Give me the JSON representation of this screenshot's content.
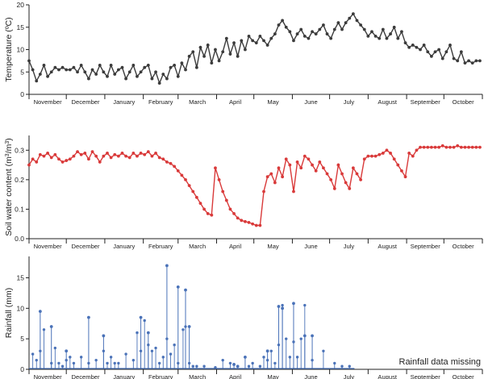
{
  "chart_data": [
    {
      "type": "line",
      "ylabel": "Temperature (",
      "ylabel_unit": "ºC)",
      "ylim": [
        0,
        20
      ],
      "yticks": [
        0,
        5,
        10,
        15,
        20
      ],
      "month_labels": [
        "November",
        "December",
        "January",
        "February",
        "March",
        "April",
        "May",
        "June",
        "July",
        "August",
        "September",
        "October"
      ],
      "color": "#3b3b3b",
      "x_day": [
        0,
        3,
        6,
        9,
        12,
        15,
        18,
        21,
        24,
        27,
        30,
        33,
        36,
        39,
        42,
        45,
        48,
        51,
        54,
        57,
        60,
        63,
        66,
        69,
        72,
        75,
        78,
        81,
        84,
        87,
        90,
        93,
        96,
        99,
        102,
        105,
        108,
        111,
        114,
        117,
        120,
        123,
        126,
        129,
        132,
        135,
        138,
        141,
        144,
        147,
        150,
        153,
        156,
        159,
        162,
        165,
        168,
        171,
        174,
        177,
        180,
        183,
        186,
        189,
        192,
        195,
        198,
        201,
        204,
        207,
        210,
        213,
        216,
        219,
        222,
        225,
        228,
        231,
        234,
        237,
        240,
        243,
        246,
        249,
        252,
        255,
        258,
        261,
        264,
        267,
        270,
        273,
        276,
        279,
        282,
        285,
        288,
        291,
        294,
        297,
        300,
        303,
        306,
        309,
        312,
        315,
        318,
        321,
        324,
        327,
        330,
        333,
        336,
        339,
        342,
        345,
        348,
        351,
        354,
        357,
        360,
        363
      ],
      "values": [
        7.5,
        5.5,
        3.0,
        4.5,
        6.5,
        4.0,
        5.0,
        6.0,
        5.5,
        6.0,
        5.5,
        5.5,
        6.0,
        5.0,
        6.5,
        5.0,
        3.5,
        5.5,
        4.5,
        6.5,
        5.0,
        4.0,
        6.5,
        4.5,
        5.5,
        6.0,
        3.5,
        5.0,
        6.5,
        4.0,
        5.0,
        6.0,
        6.5,
        3.5,
        5.0,
        2.5,
        4.5,
        3.5,
        6.0,
        6.5,
        4.0,
        7.0,
        5.5,
        8.5,
        9.5,
        6.0,
        10.5,
        8.5,
        11.0,
        7.0,
        10.0,
        7.5,
        9.5,
        12.5,
        9.0,
        11.5,
        8.5,
        12.0,
        10.0,
        13.0,
        12.0,
        11.5,
        13.0,
        12.0,
        11.0,
        12.5,
        13.5,
        15.5,
        16.5,
        15.0,
        14.0,
        12.0,
        13.5,
        14.5,
        13.0,
        12.5,
        14.0,
        13.5,
        14.5,
        15.5,
        13.5,
        12.5,
        14.5,
        16.0,
        14.5,
        16.0,
        17.0,
        18.0,
        16.5,
        15.5,
        14.5,
        13.0,
        14.0,
        13.0,
        12.5,
        14.5,
        12.5,
        13.5,
        15.0,
        12.5,
        14.0,
        11.5,
        10.5,
        11.0,
        10.5,
        10.0,
        11.0,
        9.5,
        8.5,
        9.5,
        10.0,
        8.0,
        9.5,
        11.0,
        8.0,
        7.5,
        9.5,
        7.0,
        7.5,
        7.0,
        7.5,
        7.5
      ]
    },
    {
      "type": "line",
      "ylabel": "Soil water content (m",
      "ylabel_mid": "/m",
      "ylabel_end": ")",
      "ylabel_sup": "3",
      "ylim": [
        0,
        0.35
      ],
      "yticks": [
        0.0,
        0.1,
        0.2,
        0.3
      ],
      "ytick_labels": [
        "0.0",
        "0.1",
        "0.2",
        "0.3"
      ],
      "month_labels": [
        "November",
        "December",
        "January",
        "February",
        "March",
        "April",
        "May",
        "June",
        "July",
        "August",
        "September",
        "October"
      ],
      "color": "#d93a3a",
      "x_day": [
        0,
        3,
        6,
        9,
        12,
        15,
        18,
        21,
        24,
        27,
        30,
        33,
        36,
        39,
        42,
        45,
        48,
        51,
        54,
        57,
        60,
        63,
        66,
        69,
        72,
        75,
        78,
        81,
        84,
        87,
        90,
        93,
        96,
        99,
        102,
        105,
        108,
        111,
        114,
        117,
        120,
        123,
        126,
        129,
        132,
        135,
        138,
        141,
        144,
        147,
        150,
        153,
        156,
        159,
        162,
        165,
        168,
        171,
        174,
        177,
        180,
        183,
        186,
        189,
        192,
        195,
        198,
        201,
        204,
        207,
        210,
        213,
        216,
        219,
        222,
        225,
        228,
        231,
        234,
        237,
        240,
        243,
        246,
        249,
        252,
        255,
        258,
        261,
        264,
        267,
        270,
        273,
        276,
        279,
        282,
        285,
        288,
        291,
        294,
        297,
        300,
        303,
        306,
        309,
        312,
        315,
        318,
        321,
        324,
        327,
        330,
        333,
        336,
        339,
        342,
        345,
        348,
        351,
        354,
        357,
        360,
        363
      ],
      "values": [
        0.25,
        0.27,
        0.26,
        0.285,
        0.28,
        0.29,
        0.275,
        0.285,
        0.27,
        0.26,
        0.265,
        0.27,
        0.28,
        0.295,
        0.285,
        0.29,
        0.27,
        0.295,
        0.28,
        0.26,
        0.28,
        0.29,
        0.275,
        0.285,
        0.28,
        0.29,
        0.28,
        0.275,
        0.29,
        0.28,
        0.29,
        0.285,
        0.295,
        0.28,
        0.29,
        0.275,
        0.27,
        0.26,
        0.255,
        0.245,
        0.23,
        0.215,
        0.2,
        0.18,
        0.16,
        0.14,
        0.12,
        0.1,
        0.085,
        0.08,
        0.24,
        0.2,
        0.16,
        0.13,
        0.1,
        0.085,
        0.07,
        0.062,
        0.058,
        0.055,
        0.05,
        0.045,
        0.045,
        0.16,
        0.21,
        0.22,
        0.19,
        0.24,
        0.21,
        0.27,
        0.25,
        0.16,
        0.26,
        0.24,
        0.28,
        0.27,
        0.25,
        0.23,
        0.26,
        0.24,
        0.22,
        0.2,
        0.17,
        0.25,
        0.22,
        0.19,
        0.17,
        0.24,
        0.22,
        0.2,
        0.27,
        0.28,
        0.28,
        0.28,
        0.285,
        0.29,
        0.3,
        0.29,
        0.27,
        0.25,
        0.23,
        0.21,
        0.29,
        0.28,
        0.3,
        0.31,
        0.31,
        0.31,
        0.31,
        0.31,
        0.31,
        0.315,
        0.31,
        0.31,
        0.31,
        0.315,
        0.31,
        0.31,
        0.31,
        0.31,
        0.31,
        0.31
      ]
    },
    {
      "type": "line",
      "ylabel": "Rainfall (mm)",
      "ylim": [
        0,
        18.5
      ],
      "yticks": [
        0,
        5,
        10,
        15
      ],
      "month_labels": [
        "November",
        "December",
        "January",
        "February",
        "March",
        "April",
        "May",
        "June",
        "July",
        "August",
        "September",
        "October"
      ],
      "color": "#4a72b8",
      "annotation": "Rainfall data missing",
      "x_day": [
        3,
        6,
        9,
        12,
        18,
        21,
        24,
        27,
        30,
        33,
        36,
        42,
        48,
        54,
        60,
        63,
        66,
        69,
        72,
        78,
        84,
        87,
        90,
        93,
        96,
        99,
        102,
        105,
        108,
        111,
        114,
        117,
        120,
        124,
        126,
        129,
        132,
        135,
        141,
        150,
        156,
        162,
        177,
        180,
        186,
        189,
        192,
        195,
        198,
        201,
        204,
        207,
        210,
        213,
        216,
        219,
        222,
        228,
        237,
        246,
        252,
        258
      ],
      "values": [
        2.5,
        1.5,
        3.0,
        6.5,
        1.0,
        3.5,
        1.0,
        0.5,
        1.5,
        2.0,
        1.0,
        2.0,
        1.0,
        1.5,
        3.0,
        1.0,
        2.0,
        1.0,
        1.0,
        2.5,
        1.5,
        6.0,
        3.0,
        8.0,
        4.0,
        3.0,
        3.5,
        1.0,
        2.0,
        5.0,
        2.5,
        4.0,
        1.0,
        6.5,
        7.0,
        1.0,
        0.5,
        0.5,
        0.5,
        0.3,
        1.5,
        1.0,
        0.5,
        1.0,
        0.5,
        2.0,
        1.5,
        3.0,
        1.0,
        4.0,
        10.5,
        5.0,
        2.0,
        4.5,
        2.0,
        5.0,
        10.5,
        1.5,
        3.0,
        1.0,
        0.5,
        0.5
      ],
      "spikes_day": [
        9,
        18,
        30,
        48,
        60,
        90,
        96,
        111,
        120,
        126,
        129,
        165,
        168,
        174,
        192,
        201,
        204,
        213,
        222,
        228
      ],
      "spikes_value": [
        9.5,
        7.0,
        3.0,
        8.5,
        5.5,
        8.5,
        6.0,
        17.0,
        13.5,
        13.0,
        7.0,
        0.8,
        0.5,
        2.0,
        3.0,
        10.3,
        10.0,
        10.8,
        5.5,
        5.5
      ]
    }
  ]
}
